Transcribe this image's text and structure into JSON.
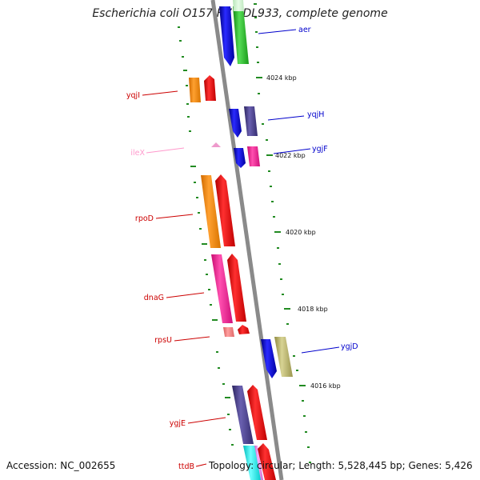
{
  "title": "Escherichia coli O157:H7 EDL933, complete genome",
  "footer": {
    "accession": "Accession: NC_002655",
    "stats": "Topology: circular; Length: 5,528,445 bp; Genes: 5,426"
  },
  "scale_ticks": [
    "4024 kbp",
    "4022 kbp",
    "4020 kbp",
    "4018 kbp",
    "4016 kbp"
  ],
  "colors": {
    "backbone": "#888888",
    "scale_dash": "#228b22",
    "blue": "#0000ff",
    "green": "#33cc33",
    "light_green": "#c8f0c8",
    "orange": "#ff8c00",
    "red": "#ff0000",
    "purple": "#483d8b",
    "pink": "#ff1493",
    "khaki": "#bdb76b",
    "salmon": "#f08080",
    "cyan": "#00ffff",
    "violet": "#ee82ee"
  },
  "genes": [
    {
      "name": "aer",
      "strand": "right",
      "color": "#0000cc"
    },
    {
      "name": "yqjI",
      "strand": "left",
      "color": "#cc0000"
    },
    {
      "name": "yqjH",
      "strand": "right",
      "color": "#0000cc"
    },
    {
      "name": "ileX",
      "strand": "left",
      "color": "#ff99cc"
    },
    {
      "name": "ygjF",
      "strand": "right",
      "color": "#0000cc"
    },
    {
      "name": "rpoD",
      "strand": "left",
      "color": "#cc0000"
    },
    {
      "name": "dnaG",
      "strand": "left",
      "color": "#cc0000"
    },
    {
      "name": "rpsU",
      "strand": "left",
      "color": "#cc0000"
    },
    {
      "name": "ygjD",
      "strand": "right",
      "color": "#0000cc"
    },
    {
      "name": "ygjE",
      "strand": "left",
      "color": "#cc0000"
    },
    {
      "name": "ttdB",
      "strand": "left",
      "color": "#cc0000"
    }
  ]
}
